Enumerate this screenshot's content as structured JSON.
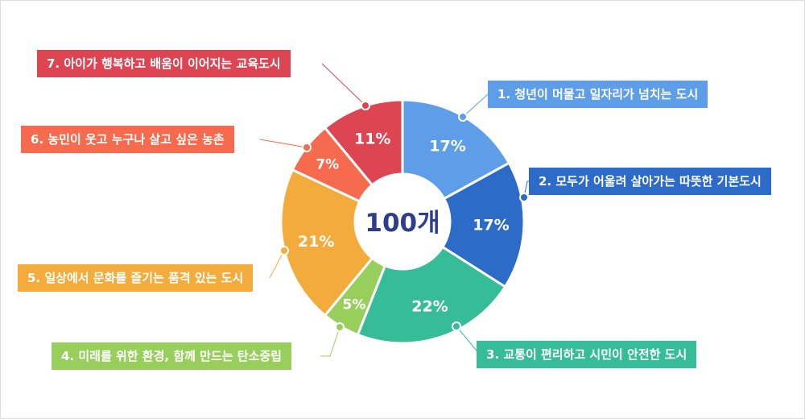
{
  "chart_data": {
    "type": "pie",
    "center_label": "100개",
    "slices": [
      {
        "label": "1. 청년이 머물고 일자리가 넘치는 도시",
        "value": 17,
        "display": "17%",
        "color": "#5e9ee8"
      },
      {
        "label": "2. 모두가 어울려 살아가는 따뜻한 기본도시",
        "value": 17,
        "display": "17%",
        "color": "#2d6bc8"
      },
      {
        "label": "3. 교통이 편리하고 시민이 안전한 도시",
        "value": 22,
        "display": "22%",
        "color": "#37bc98"
      },
      {
        "label": "4. 미래를 위한 환경, 함께 만드는 탄소중립",
        "value": 5,
        "display": "5%",
        "color": "#98cf5c"
      },
      {
        "label": "5. 일상에서 문화를 즐기는 품격 있는 도시",
        "value": 21,
        "display": "21%",
        "color": "#f3ac3b"
      },
      {
        "label": "6. 농민이 웃고 누구나 살고 싶은 농촌",
        "value": 7,
        "display": "7%",
        "color": "#f66a4d"
      },
      {
        "label": "7. 아이가 행복하고 배움이 이어지는 교육도시",
        "value": 11,
        "display": "11%",
        "color": "#dd4553"
      }
    ]
  }
}
